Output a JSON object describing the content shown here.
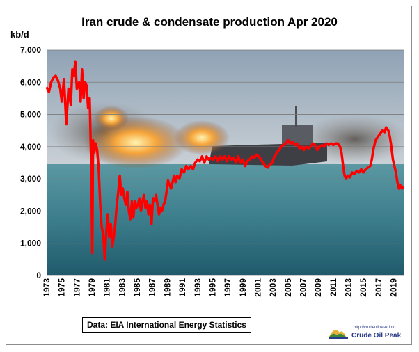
{
  "chart_data": {
    "type": "line",
    "title": "Iran crude & condensate production  Apr 2020",
    "ylabel": "kb/d",
    "xlabel": "",
    "ylim": [
      0,
      7000
    ],
    "xlim": [
      1973,
      2020.33
    ],
    "y_ticks": [
      "0",
      "1,000",
      "2,000",
      "3,000",
      "4,000",
      "5,000",
      "6,000",
      "7,000"
    ],
    "x_ticks": [
      "1973",
      "1975",
      "1977",
      "1979",
      "1981",
      "1983",
      "1985",
      "1987",
      "1989",
      "1991",
      "1993",
      "1995",
      "1997",
      "1999",
      "2001",
      "2003",
      "2005",
      "2007",
      "2009",
      "2011",
      "2013",
      "2015",
      "2017",
      "2019"
    ],
    "grid": true,
    "background": "photo of burning ship at sea",
    "series": [
      {
        "color": "#ff0000",
        "points": [
          [
            1973.0,
            5850
          ],
          [
            1973.3,
            5700
          ],
          [
            1973.6,
            6000
          ],
          [
            1973.9,
            6150
          ],
          [
            1974.2,
            6200
          ],
          [
            1974.5,
            6050
          ],
          [
            1974.8,
            5800
          ],
          [
            1975.0,
            5400
          ],
          [
            1975.3,
            6100
          ],
          [
            1975.6,
            4700
          ],
          [
            1975.9,
            5800
          ],
          [
            1976.2,
            5300
          ],
          [
            1976.4,
            6400
          ],
          [
            1976.6,
            6200
          ],
          [
            1976.8,
            6650
          ],
          [
            1977.0,
            5800
          ],
          [
            1977.3,
            6000
          ],
          [
            1977.5,
            5400
          ],
          [
            1977.7,
            6400
          ],
          [
            1977.9,
            5500
          ],
          [
            1978.1,
            6000
          ],
          [
            1978.3,
            5900
          ],
          [
            1978.5,
            5200
          ],
          [
            1978.7,
            5500
          ],
          [
            1978.9,
            3600
          ],
          [
            1979.05,
            700
          ],
          [
            1979.15,
            4200
          ],
          [
            1979.3,
            3800
          ],
          [
            1979.5,
            4100
          ],
          [
            1979.7,
            3900
          ],
          [
            1979.9,
            3300
          ],
          [
            1980.1,
            2200
          ],
          [
            1980.3,
            1500
          ],
          [
            1980.5,
            1300
          ],
          [
            1980.7,
            500
          ],
          [
            1980.9,
            1300
          ],
          [
            1981.1,
            1900
          ],
          [
            1981.3,
            1200
          ],
          [
            1981.5,
            1600
          ],
          [
            1981.7,
            900
          ],
          [
            1981.9,
            1200
          ],
          [
            1982.1,
            1600
          ],
          [
            1982.3,
            2200
          ],
          [
            1982.5,
            2600
          ],
          [
            1982.7,
            3100
          ],
          [
            1982.9,
            2500
          ],
          [
            1983.1,
            2700
          ],
          [
            1983.3,
            2400
          ],
          [
            1983.5,
            2200
          ],
          [
            1983.7,
            2600
          ],
          [
            1983.9,
            2000
          ],
          [
            1984.1,
            1750
          ],
          [
            1984.3,
            2300
          ],
          [
            1984.5,
            1800
          ],
          [
            1984.7,
            2300
          ],
          [
            1984.9,
            2100
          ],
          [
            1985.1,
            2200
          ],
          [
            1985.3,
            2400
          ],
          [
            1985.5,
            2000
          ],
          [
            1985.7,
            2300
          ],
          [
            1985.9,
            2500
          ],
          [
            1986.1,
            2100
          ],
          [
            1986.3,
            2300
          ],
          [
            1986.5,
            1900
          ],
          [
            1986.7,
            2200
          ],
          [
            1986.9,
            1600
          ],
          [
            1987.1,
            2400
          ],
          [
            1987.3,
            2300
          ],
          [
            1987.5,
            2500
          ],
          [
            1987.7,
            2200
          ],
          [
            1987.9,
            1900
          ],
          [
            1988.1,
            2100
          ],
          [
            1988.3,
            2000
          ],
          [
            1988.5,
            2200
          ],
          [
            1988.7,
            2300
          ],
          [
            1988.9,
            2600
          ],
          [
            1989.1,
            2950
          ],
          [
            1989.3,
            2800
          ],
          [
            1989.5,
            2700
          ],
          [
            1989.7,
            2900
          ],
          [
            1989.9,
            3100
          ],
          [
            1990.1,
            2900
          ],
          [
            1990.3,
            3100
          ],
          [
            1990.6,
            3000
          ],
          [
            1990.9,
            3300
          ],
          [
            1991.2,
            3200
          ],
          [
            1991.5,
            3400
          ],
          [
            1991.8,
            3300
          ],
          [
            1992.1,
            3400
          ],
          [
            1992.4,
            3300
          ],
          [
            1992.7,
            3500
          ],
          [
            1993.0,
            3600
          ],
          [
            1993.3,
            3550
          ],
          [
            1993.6,
            3700
          ],
          [
            1993.9,
            3500
          ],
          [
            1994.2,
            3700
          ],
          [
            1994.5,
            3600
          ],
          [
            1994.8,
            3650
          ],
          [
            1995.1,
            3600
          ],
          [
            1995.4,
            3700
          ],
          [
            1995.7,
            3550
          ],
          [
            1996.0,
            3700
          ],
          [
            1996.3,
            3600
          ],
          [
            1996.6,
            3700
          ],
          [
            1996.9,
            3550
          ],
          [
            1997.2,
            3700
          ],
          [
            1997.5,
            3600
          ],
          [
            1997.8,
            3650
          ],
          [
            1998.1,
            3500
          ],
          [
            1998.4,
            3700
          ],
          [
            1998.7,
            3500
          ],
          [
            1999.0,
            3600
          ],
          [
            1999.3,
            3400
          ],
          [
            1999.6,
            3550
          ],
          [
            1999.9,
            3600
          ],
          [
            2000.2,
            3700
          ],
          [
            2000.5,
            3650
          ],
          [
            2000.8,
            3750
          ],
          [
            2001.1,
            3700
          ],
          [
            2001.4,
            3600
          ],
          [
            2001.7,
            3500
          ],
          [
            2002.0,
            3400
          ],
          [
            2002.3,
            3350
          ],
          [
            2002.6,
            3450
          ],
          [
            2002.9,
            3500
          ],
          [
            2003.2,
            3700
          ],
          [
            2003.5,
            3800
          ],
          [
            2003.8,
            3900
          ],
          [
            2004.1,
            4000
          ],
          [
            2004.4,
            4050
          ],
          [
            2004.7,
            4100
          ],
          [
            2005.0,
            4200
          ],
          [
            2005.3,
            4100
          ],
          [
            2005.6,
            4150
          ],
          [
            2005.9,
            4050
          ],
          [
            2006.2,
            4100
          ],
          [
            2006.5,
            3950
          ],
          [
            2006.8,
            4000
          ],
          [
            2007.1,
            3900
          ],
          [
            2007.4,
            4000
          ],
          [
            2007.7,
            3950
          ],
          [
            2008.0,
            4000
          ],
          [
            2008.3,
            4100
          ],
          [
            2008.6,
            4050
          ],
          [
            2008.9,
            3900
          ],
          [
            2009.2,
            4000
          ],
          [
            2009.5,
            4050
          ],
          [
            2009.8,
            4000
          ],
          [
            2010.1,
            4100
          ],
          [
            2010.4,
            4050
          ],
          [
            2010.7,
            4100
          ],
          [
            2011.0,
            4050
          ],
          [
            2011.3,
            4100
          ],
          [
            2011.6,
            4100
          ],
          [
            2011.9,
            4000
          ],
          [
            2012.1,
            3800
          ],
          [
            2012.3,
            3400
          ],
          [
            2012.5,
            3100
          ],
          [
            2012.7,
            3000
          ],
          [
            2012.9,
            3100
          ],
          [
            2013.2,
            3050
          ],
          [
            2013.5,
            3200
          ],
          [
            2013.8,
            3150
          ],
          [
            2014.1,
            3250
          ],
          [
            2014.4,
            3200
          ],
          [
            2014.7,
            3300
          ],
          [
            2015.0,
            3200
          ],
          [
            2015.3,
            3300
          ],
          [
            2015.6,
            3350
          ],
          [
            2015.9,
            3400
          ],
          [
            2016.1,
            3600
          ],
          [
            2016.3,
            3900
          ],
          [
            2016.6,
            4200
          ],
          [
            2016.9,
            4300
          ],
          [
            2017.2,
            4400
          ],
          [
            2017.5,
            4500
          ],
          [
            2017.8,
            4450
          ],
          [
            2018.0,
            4600
          ],
          [
            2018.3,
            4500
          ],
          [
            2018.5,
            4300
          ],
          [
            2018.7,
            4000
          ],
          [
            2018.9,
            3600
          ],
          [
            2019.1,
            3400
          ],
          [
            2019.3,
            3200
          ],
          [
            2019.5,
            2900
          ],
          [
            2019.7,
            2700
          ],
          [
            2019.9,
            2800
          ],
          [
            2020.1,
            2700
          ],
          [
            2020.33,
            2750
          ]
        ]
      }
    ]
  },
  "source_note": "Data: EIA International Energy Statistics",
  "logo": {
    "url": "http://crudeoilpeak.info",
    "name": "Crude Oil Peak"
  },
  "colors": {
    "line": "#ff0000",
    "sky_top": "#8fa2b4",
    "sky_bottom": "#c3ccd3",
    "sea_top": "#4f8e9a",
    "sea_bottom": "#1f5a6b",
    "fire": "#f7a53a"
  }
}
